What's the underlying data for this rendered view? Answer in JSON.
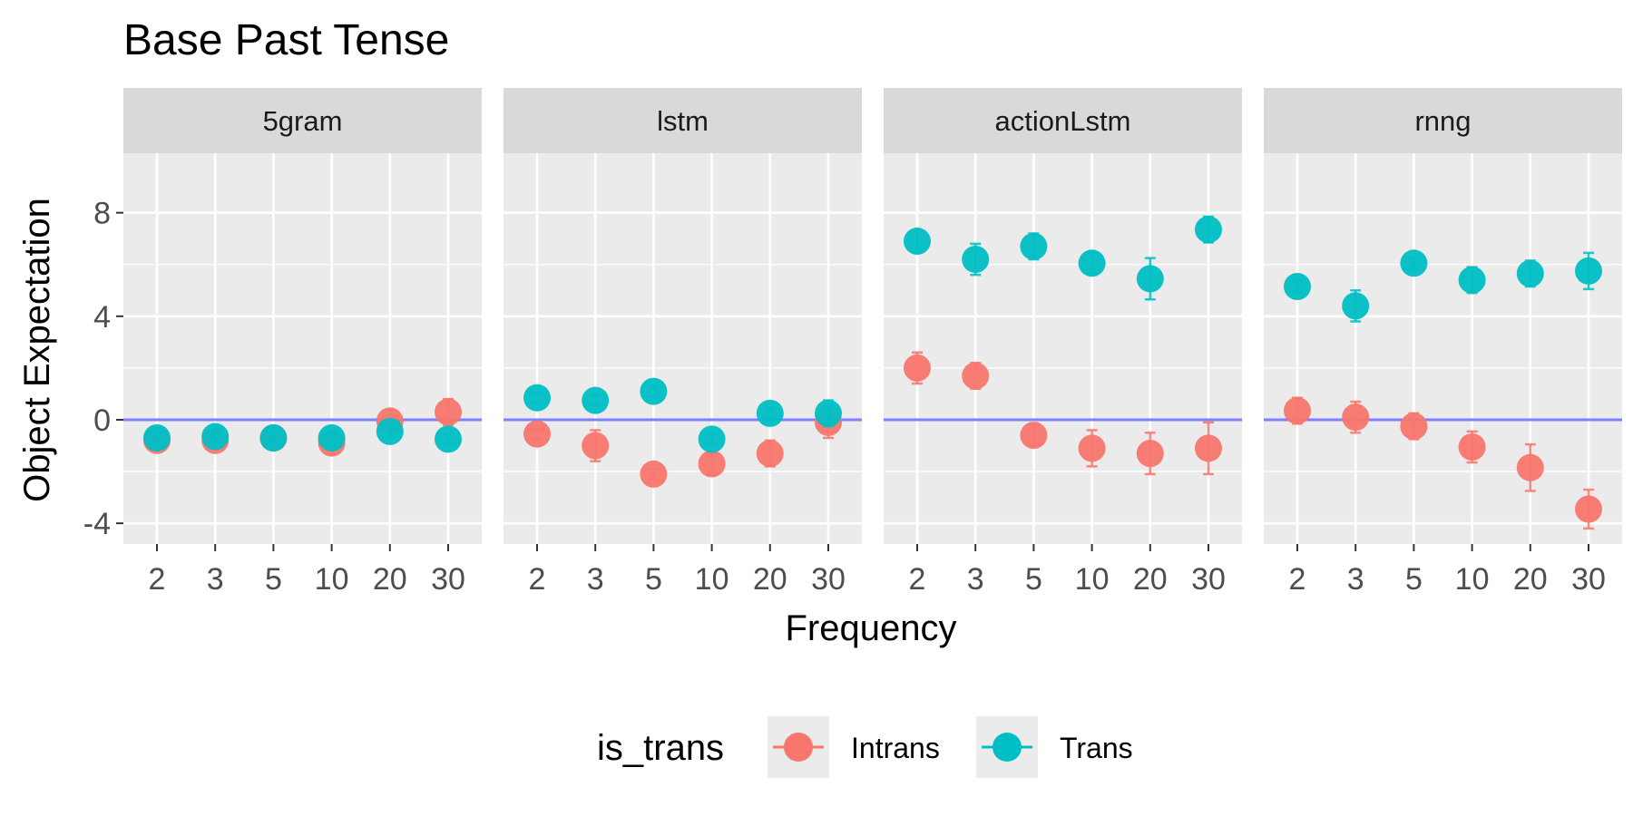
{
  "chart_data": {
    "type": "scatter",
    "title": "Base Past Tense",
    "xlabel": "Frequency",
    "ylabel": "Object Expectation",
    "x_categories": [
      "2",
      "3",
      "5",
      "10",
      "20",
      "30"
    ],
    "y_ticks": [
      -4,
      0,
      4,
      8
    ],
    "ylim": [
      -4.8,
      10.3
    ],
    "reference_line": {
      "y": 0,
      "color": "#7f7fff"
    },
    "legend": {
      "title": "is_trans",
      "position": "bottom"
    },
    "colors": {
      "Intrans": "#F8766D",
      "Trans": "#00BFC4"
    },
    "panels": [
      {
        "name": "5gram",
        "series": [
          {
            "name": "Intrans",
            "values": [
              -0.8,
              -0.8,
              -0.7,
              -0.9,
              -0.05,
              0.3
            ],
            "err": [
              0.2,
              0.2,
              0.2,
              0.2,
              0.2,
              0.5
            ]
          },
          {
            "name": "Trans",
            "values": [
              -0.7,
              -0.65,
              -0.7,
              -0.7,
              -0.45,
              -0.75
            ],
            "err": [
              0.2,
              0.2,
              0.2,
              0.2,
              0.2,
              0.2
            ]
          }
        ]
      },
      {
        "name": "lstm",
        "series": [
          {
            "name": "Intrans",
            "values": [
              -0.55,
              -1.0,
              -2.1,
              -1.7,
              -1.3,
              -0.1
            ],
            "err": [
              0.2,
              0.6,
              0.2,
              0.4,
              0.5,
              0.6
            ]
          },
          {
            "name": "Trans",
            "values": [
              0.85,
              0.75,
              1.1,
              -0.75,
              0.25,
              0.25
            ],
            "err": [
              0.2,
              0.2,
              0.2,
              0.2,
              0.2,
              0.5
            ]
          }
        ]
      },
      {
        "name": "actionLstm",
        "series": [
          {
            "name": "Intrans",
            "values": [
              2.0,
              1.7,
              -0.6,
              -1.1,
              -1.3,
              -1.1
            ],
            "err": [
              0.6,
              0.5,
              0.4,
              0.7,
              0.8,
              1.0
            ]
          },
          {
            "name": "Trans",
            "values": [
              6.9,
              6.2,
              6.7,
              6.05,
              5.45,
              7.35
            ],
            "err": [
              0.4,
              0.6,
              0.5,
              0.4,
              0.8,
              0.5
            ]
          }
        ]
      },
      {
        "name": "rnng",
        "series": [
          {
            "name": "Intrans",
            "values": [
              0.35,
              0.1,
              -0.25,
              -1.05,
              -1.85,
              -3.45
            ],
            "err": [
              0.5,
              0.6,
              0.5,
              0.6,
              0.9,
              0.75
            ]
          },
          {
            "name": "Trans",
            "values": [
              5.15,
              4.4,
              6.05,
              5.4,
              5.65,
              5.75
            ],
            "err": [
              0.2,
              0.6,
              0.2,
              0.5,
              0.5,
              0.7
            ]
          }
        ]
      }
    ]
  }
}
